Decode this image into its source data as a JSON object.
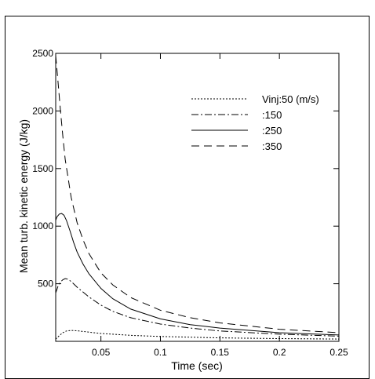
{
  "chart_data": {
    "type": "line",
    "title": "",
    "xlabel": "Time (sec)",
    "ylabel": "Mean turb. kinetic energy (J/kg)",
    "xlim": [
      0.012,
      0.25
    ],
    "ylim": [
      0,
      2500
    ],
    "x_ticks": [
      {
        "value": 0.05,
        "label": "0.05"
      },
      {
        "value": 0.1,
        "label": "0.1"
      },
      {
        "value": 0.15,
        "label": "0.15"
      },
      {
        "value": 0.2,
        "label": "0.2"
      },
      {
        "value": 0.25,
        "label": "0.25"
      }
    ],
    "y_ticks": [
      {
        "value": 500,
        "label": "500"
      },
      {
        "value": 1000,
        "label": "1000"
      },
      {
        "value": 1500,
        "label": "1500"
      },
      {
        "value": 2000,
        "label": "2000"
      },
      {
        "value": 2500,
        "label": "2500"
      }
    ],
    "grid": false,
    "legend_position": "top-right",
    "series": [
      {
        "name": "Vinj:50 (m/s)",
        "dash": "dotted",
        "x": [
          0.012,
          0.015,
          0.018,
          0.021,
          0.025,
          0.03,
          0.04,
          0.05,
          0.075,
          0.1,
          0.15,
          0.2,
          0.25
        ],
        "y": [
          20,
          50,
          75,
          90,
          95,
          92,
          80,
          68,
          52,
          42,
          30,
          24,
          20
        ]
      },
      {
        "name": ":150",
        "dash": "dashdot",
        "x": [
          0.012,
          0.014,
          0.016,
          0.018,
          0.02,
          0.022,
          0.025,
          0.03,
          0.04,
          0.05,
          0.06,
          0.075,
          0.1,
          0.125,
          0.15,
          0.2,
          0.25
        ],
        "y": [
          420,
          480,
          515,
          535,
          545,
          540,
          520,
          470,
          385,
          315,
          260,
          205,
          150,
          115,
          90,
          62,
          45
        ]
      },
      {
        "name": ":250",
        "dash": "solid",
        "x": [
          0.012,
          0.013,
          0.015,
          0.017,
          0.019,
          0.021,
          0.024,
          0.027,
          0.03,
          0.035,
          0.04,
          0.05,
          0.06,
          0.075,
          0.1,
          0.125,
          0.15,
          0.2,
          0.25
        ],
        "y": [
          1050,
          1080,
          1105,
          1110,
          1095,
          1050,
          960,
          860,
          775,
          670,
          585,
          460,
          370,
          280,
          195,
          145,
          115,
          75,
          55
        ]
      },
      {
        "name": ":350",
        "dash": "dashed",
        "x": [
          0.012,
          0.014,
          0.016,
          0.018,
          0.02,
          0.025,
          0.03,
          0.035,
          0.04,
          0.05,
          0.06,
          0.075,
          0.1,
          0.125,
          0.15,
          0.2,
          0.25
        ],
        "y": [
          2480,
          2250,
          2000,
          1780,
          1580,
          1250,
          1030,
          880,
          760,
          595,
          490,
          380,
          270,
          205,
          160,
          105,
          75
        ]
      }
    ]
  }
}
